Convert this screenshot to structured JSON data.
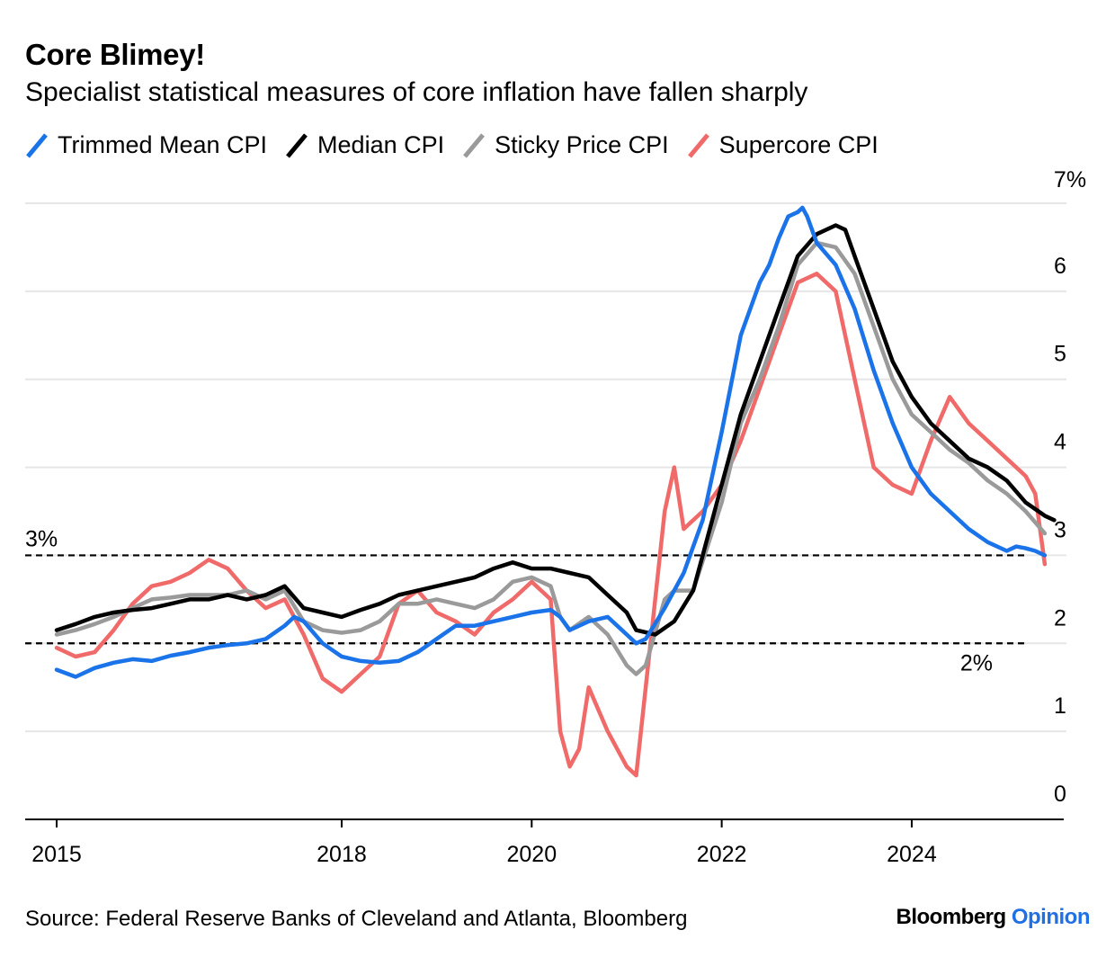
{
  "header": {
    "title": "Core Blimey!",
    "subtitle": "Specialist statistical measures of core inflation have fallen sharply"
  },
  "legend": [
    {
      "name": "Trimmed Mean CPI",
      "color": "#1a73e8"
    },
    {
      "name": "Median CPI",
      "color": "#000000"
    },
    {
      "name": "Sticky Price CPI",
      "color": "#9a9a9a"
    },
    {
      "name": "Supercore CPI",
      "color": "#f06a6a"
    }
  ],
  "footer": {
    "source": "Source: Federal Reserve Banks of Cleveland and Atlanta, Bloomberg",
    "brand_main": "Bloomberg",
    "brand_opinion": "Opinion"
  },
  "chart_data": {
    "type": "line",
    "title": "Core Blimey!",
    "subtitle": "Specialist statistical measures of core inflation have fallen sharply",
    "xlabel": "",
    "ylabel": "",
    "xlim": [
      2015,
      2025.6
    ],
    "ylim": [
      0,
      7
    ],
    "x_ticks": [
      {
        "value": 2015,
        "label": "2015"
      },
      {
        "value": 2018,
        "label": "2018"
      },
      {
        "value": 2020,
        "label": "2020"
      },
      {
        "value": 2022,
        "label": "2022"
      },
      {
        "value": 2024,
        "label": "2024"
      }
    ],
    "y_ticks": [
      {
        "value": 0,
        "label": "0"
      },
      {
        "value": 1,
        "label": "1"
      },
      {
        "value": 2,
        "label": "2"
      },
      {
        "value": 3,
        "label": "3"
      },
      {
        "value": 4,
        "label": "4"
      },
      {
        "value": 5,
        "label": "5"
      },
      {
        "value": 6,
        "label": "6"
      },
      {
        "value": 7,
        "label": "7%"
      }
    ],
    "reference_lines": [
      {
        "value": 3,
        "label": "3%",
        "label_side": "left"
      },
      {
        "value": 2,
        "label": "2%",
        "label_side": "right"
      }
    ],
    "series": [
      {
        "name": "Trimmed Mean CPI",
        "color": "#1a73e8",
        "points": [
          [
            2015.0,
            1.7
          ],
          [
            2015.2,
            1.62
          ],
          [
            2015.4,
            1.72
          ],
          [
            2015.6,
            1.78
          ],
          [
            2015.8,
            1.82
          ],
          [
            2016.0,
            1.8
          ],
          [
            2016.2,
            1.86
          ],
          [
            2016.4,
            1.9
          ],
          [
            2016.6,
            1.95
          ],
          [
            2016.8,
            1.98
          ],
          [
            2017.0,
            2.0
          ],
          [
            2017.2,
            2.05
          ],
          [
            2017.4,
            2.2
          ],
          [
            2017.5,
            2.3
          ],
          [
            2017.6,
            2.25
          ],
          [
            2017.8,
            2.0
          ],
          [
            2018.0,
            1.85
          ],
          [
            2018.2,
            1.8
          ],
          [
            2018.4,
            1.78
          ],
          [
            2018.6,
            1.8
          ],
          [
            2018.8,
            1.9
          ],
          [
            2019.0,
            2.05
          ],
          [
            2019.2,
            2.2
          ],
          [
            2019.4,
            2.2
          ],
          [
            2019.6,
            2.25
          ],
          [
            2019.8,
            2.3
          ],
          [
            2020.0,
            2.35
          ],
          [
            2020.2,
            2.38
          ],
          [
            2020.3,
            2.3
          ],
          [
            2020.4,
            2.15
          ],
          [
            2020.6,
            2.25
          ],
          [
            2020.8,
            2.3
          ],
          [
            2020.9,
            2.2
          ],
          [
            2021.0,
            2.1
          ],
          [
            2021.1,
            2.0
          ],
          [
            2021.2,
            2.05
          ],
          [
            2021.4,
            2.4
          ],
          [
            2021.6,
            2.8
          ],
          [
            2021.8,
            3.4
          ],
          [
            2022.0,
            4.4
          ],
          [
            2022.2,
            5.5
          ],
          [
            2022.4,
            6.1
          ],
          [
            2022.5,
            6.3
          ],
          [
            2022.6,
            6.6
          ],
          [
            2022.7,
            6.85
          ],
          [
            2022.8,
            6.9
          ],
          [
            2022.85,
            6.95
          ],
          [
            2022.9,
            6.85
          ],
          [
            2023.0,
            6.55
          ],
          [
            2023.2,
            6.3
          ],
          [
            2023.4,
            5.8
          ],
          [
            2023.6,
            5.1
          ],
          [
            2023.8,
            4.5
          ],
          [
            2024.0,
            4.0
          ],
          [
            2024.2,
            3.7
          ],
          [
            2024.4,
            3.5
          ],
          [
            2024.6,
            3.3
          ],
          [
            2024.8,
            3.15
          ],
          [
            2025.0,
            3.05
          ],
          [
            2025.1,
            3.1
          ],
          [
            2025.2,
            3.08
          ],
          [
            2025.3,
            3.05
          ],
          [
            2025.4,
            3.0
          ]
        ]
      },
      {
        "name": "Median CPI",
        "color": "#000000",
        "points": [
          [
            2015.0,
            2.15
          ],
          [
            2015.2,
            2.22
          ],
          [
            2015.4,
            2.3
          ],
          [
            2015.6,
            2.35
          ],
          [
            2015.8,
            2.38
          ],
          [
            2016.0,
            2.4
          ],
          [
            2016.2,
            2.45
          ],
          [
            2016.4,
            2.5
          ],
          [
            2016.6,
            2.5
          ],
          [
            2016.8,
            2.55
          ],
          [
            2017.0,
            2.5
          ],
          [
            2017.2,
            2.55
          ],
          [
            2017.4,
            2.65
          ],
          [
            2017.6,
            2.4
          ],
          [
            2017.8,
            2.35
          ],
          [
            2018.0,
            2.3
          ],
          [
            2018.2,
            2.38
          ],
          [
            2018.4,
            2.45
          ],
          [
            2018.6,
            2.55
          ],
          [
            2018.8,
            2.6
          ],
          [
            2019.0,
            2.65
          ],
          [
            2019.2,
            2.7
          ],
          [
            2019.4,
            2.75
          ],
          [
            2019.6,
            2.85
          ],
          [
            2019.8,
            2.92
          ],
          [
            2020.0,
            2.85
          ],
          [
            2020.2,
            2.85
          ],
          [
            2020.4,
            2.8
          ],
          [
            2020.6,
            2.75
          ],
          [
            2020.8,
            2.55
          ],
          [
            2021.0,
            2.35
          ],
          [
            2021.1,
            2.15
          ],
          [
            2021.3,
            2.1
          ],
          [
            2021.5,
            2.25
          ],
          [
            2021.7,
            2.6
          ],
          [
            2021.8,
            3.0
          ],
          [
            2022.0,
            3.8
          ],
          [
            2022.2,
            4.6
          ],
          [
            2022.4,
            5.2
          ],
          [
            2022.6,
            5.8
          ],
          [
            2022.8,
            6.4
          ],
          [
            2023.0,
            6.65
          ],
          [
            2023.2,
            6.75
          ],
          [
            2023.3,
            6.7
          ],
          [
            2023.4,
            6.4
          ],
          [
            2023.6,
            5.8
          ],
          [
            2023.8,
            5.2
          ],
          [
            2024.0,
            4.8
          ],
          [
            2024.2,
            4.5
          ],
          [
            2024.4,
            4.3
          ],
          [
            2024.6,
            4.1
          ],
          [
            2024.8,
            4.0
          ],
          [
            2025.0,
            3.85
          ],
          [
            2025.2,
            3.6
          ],
          [
            2025.4,
            3.45
          ],
          [
            2025.5,
            3.4
          ]
        ]
      },
      {
        "name": "Sticky Price CPI",
        "color": "#9a9a9a",
        "points": [
          [
            2015.0,
            2.1
          ],
          [
            2015.2,
            2.15
          ],
          [
            2015.4,
            2.22
          ],
          [
            2015.6,
            2.3
          ],
          [
            2015.8,
            2.4
          ],
          [
            2016.0,
            2.5
          ],
          [
            2016.2,
            2.52
          ],
          [
            2016.4,
            2.55
          ],
          [
            2016.6,
            2.55
          ],
          [
            2016.8,
            2.55
          ],
          [
            2017.0,
            2.6
          ],
          [
            2017.2,
            2.5
          ],
          [
            2017.4,
            2.6
          ],
          [
            2017.6,
            2.25
          ],
          [
            2017.8,
            2.15
          ],
          [
            2018.0,
            2.12
          ],
          [
            2018.2,
            2.15
          ],
          [
            2018.4,
            2.25
          ],
          [
            2018.6,
            2.45
          ],
          [
            2018.8,
            2.45
          ],
          [
            2019.0,
            2.5
          ],
          [
            2019.2,
            2.45
          ],
          [
            2019.4,
            2.4
          ],
          [
            2019.6,
            2.5
          ],
          [
            2019.8,
            2.7
          ],
          [
            2020.0,
            2.75
          ],
          [
            2020.2,
            2.65
          ],
          [
            2020.3,
            2.3
          ],
          [
            2020.4,
            2.15
          ],
          [
            2020.6,
            2.3
          ],
          [
            2020.8,
            2.1
          ],
          [
            2021.0,
            1.75
          ],
          [
            2021.1,
            1.65
          ],
          [
            2021.2,
            1.75
          ],
          [
            2021.4,
            2.5
          ],
          [
            2021.5,
            2.6
          ],
          [
            2021.7,
            2.6
          ],
          [
            2022.0,
            3.6
          ],
          [
            2022.2,
            4.5
          ],
          [
            2022.4,
            5.0
          ],
          [
            2022.6,
            5.6
          ],
          [
            2022.8,
            6.3
          ],
          [
            2023.0,
            6.55
          ],
          [
            2023.2,
            6.5
          ],
          [
            2023.4,
            6.2
          ],
          [
            2023.6,
            5.6
          ],
          [
            2023.8,
            5.0
          ],
          [
            2024.0,
            4.6
          ],
          [
            2024.2,
            4.4
          ],
          [
            2024.4,
            4.2
          ],
          [
            2024.6,
            4.05
          ],
          [
            2024.8,
            3.85
          ],
          [
            2025.0,
            3.7
          ],
          [
            2025.2,
            3.5
          ],
          [
            2025.4,
            3.25
          ]
        ]
      },
      {
        "name": "Supercore CPI",
        "color": "#f06a6a",
        "points": [
          [
            2015.0,
            1.95
          ],
          [
            2015.2,
            1.85
          ],
          [
            2015.4,
            1.9
          ],
          [
            2015.6,
            2.15
          ],
          [
            2015.8,
            2.45
          ],
          [
            2016.0,
            2.65
          ],
          [
            2016.2,
            2.7
          ],
          [
            2016.4,
            2.8
          ],
          [
            2016.6,
            2.95
          ],
          [
            2016.8,
            2.85
          ],
          [
            2017.0,
            2.6
          ],
          [
            2017.2,
            2.4
          ],
          [
            2017.4,
            2.5
          ],
          [
            2017.6,
            2.1
          ],
          [
            2017.8,
            1.6
          ],
          [
            2018.0,
            1.45
          ],
          [
            2018.2,
            1.65
          ],
          [
            2018.4,
            1.85
          ],
          [
            2018.6,
            2.45
          ],
          [
            2018.8,
            2.6
          ],
          [
            2019.0,
            2.35
          ],
          [
            2019.2,
            2.25
          ],
          [
            2019.4,
            2.1
          ],
          [
            2019.6,
            2.35
          ],
          [
            2019.8,
            2.5
          ],
          [
            2020.0,
            2.7
          ],
          [
            2020.2,
            2.5
          ],
          [
            2020.3,
            1.0
          ],
          [
            2020.4,
            0.6
          ],
          [
            2020.5,
            0.8
          ],
          [
            2020.6,
            1.5
          ],
          [
            2020.8,
            1.0
          ],
          [
            2021.0,
            0.6
          ],
          [
            2021.1,
            0.5
          ],
          [
            2021.2,
            1.5
          ],
          [
            2021.4,
            3.5
          ],
          [
            2021.5,
            4.0
          ],
          [
            2021.6,
            3.3
          ],
          [
            2021.8,
            3.5
          ],
          [
            2022.0,
            3.8
          ],
          [
            2022.2,
            4.3
          ],
          [
            2022.4,
            4.9
          ],
          [
            2022.6,
            5.5
          ],
          [
            2022.8,
            6.1
          ],
          [
            2023.0,
            6.2
          ],
          [
            2023.2,
            6.0
          ],
          [
            2023.4,
            5.0
          ],
          [
            2023.6,
            4.0
          ],
          [
            2023.8,
            3.8
          ],
          [
            2024.0,
            3.7
          ],
          [
            2024.2,
            4.3
          ],
          [
            2024.4,
            4.8
          ],
          [
            2024.6,
            4.5
          ],
          [
            2024.8,
            4.3
          ],
          [
            2025.0,
            4.1
          ],
          [
            2025.2,
            3.9
          ],
          [
            2025.3,
            3.7
          ],
          [
            2025.4,
            2.9
          ]
        ]
      }
    ]
  }
}
